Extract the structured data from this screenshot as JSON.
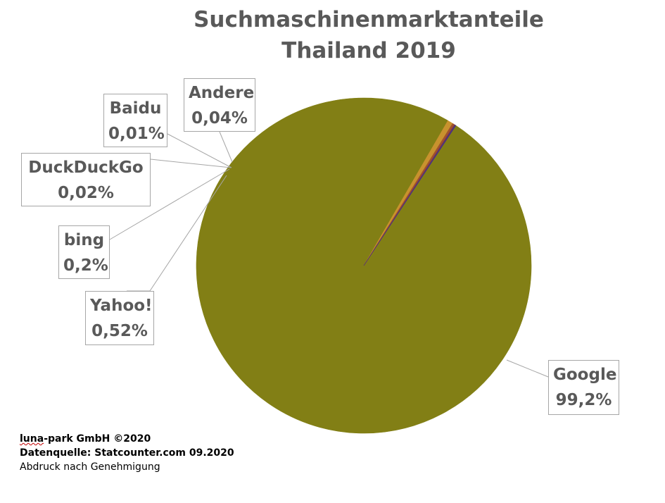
{
  "chart_data": {
    "type": "pie",
    "title_lines": [
      "Suchmaschinenmarktanteile",
      "Thailand 2019"
    ],
    "slices": [
      {
        "name": "Google",
        "label": "Google",
        "value_label": "99,2%",
        "value": 99.2,
        "color": "#827F15"
      },
      {
        "name": "Yahoo!",
        "label": "Yahoo!",
        "value_label": "0,52%",
        "value": 0.52,
        "color": "#C8922E"
      },
      {
        "name": "bing",
        "label": "bing",
        "value_label": "0,2%",
        "value": 0.2,
        "color": "#A0522D"
      },
      {
        "name": "DuckDuckGo",
        "label": "DuckDuckGo",
        "value_label": "0,02%",
        "value": 0.02,
        "color": "#8B3A3A"
      },
      {
        "name": "Baidu",
        "label": "Baidu",
        "value_label": "0,01%",
        "value": 0.01,
        "color": "#5B3A6E"
      },
      {
        "name": "Andere",
        "label": "Andere",
        "value_label": "0,04%",
        "value": 0.04,
        "color": "#4B2E83"
      }
    ]
  },
  "footer": {
    "brand_word": "luna",
    "brand_rest": "-park GmbH ©2020",
    "source": "Datenquelle: Statcounter.com 09.2020",
    "note": "Abdruck nach Genehmigung"
  }
}
